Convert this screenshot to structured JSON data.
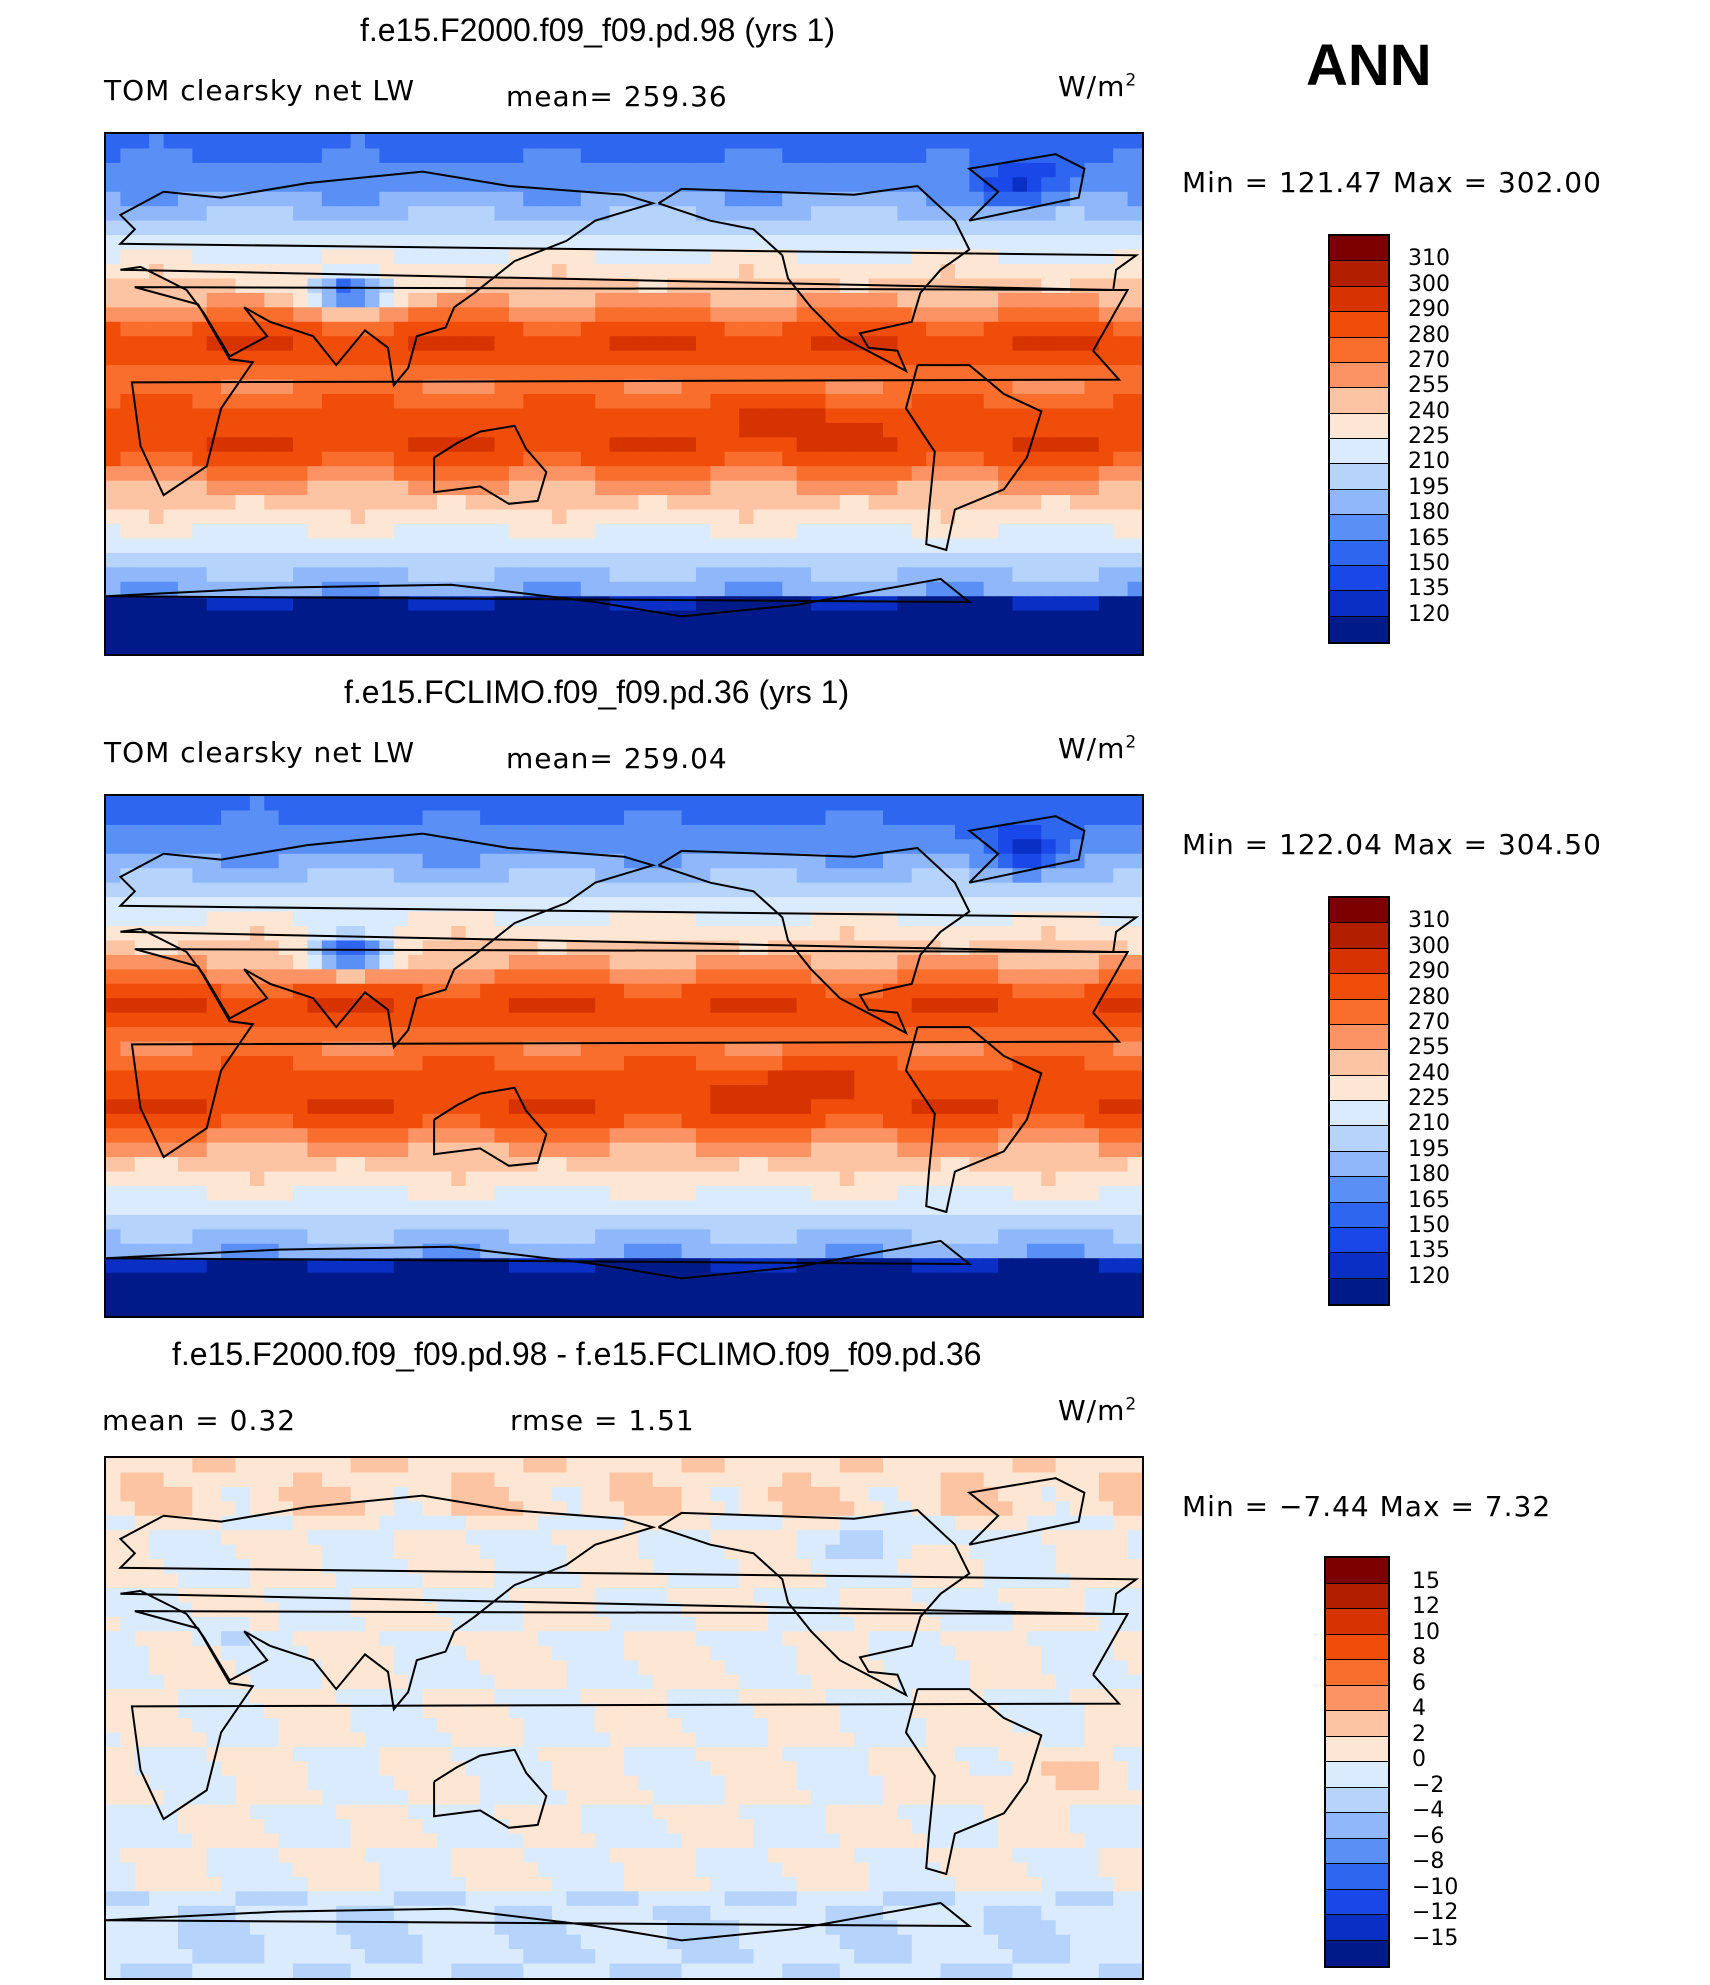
{
  "season": "ANN",
  "panels": [
    {
      "title": "f.e15.F2000.f09_f09.pd.98 (yrs 1)",
      "left_label": "TOM clearsky net LW",
      "mid_label": "mean=  259.36",
      "units": "W/m",
      "units_sup": "2",
      "minmax": "Min  =  121.47  Max  =  302.00"
    },
    {
      "title": "f.e15.FCLIMO.f09_f09.pd.36 (yrs 1)",
      "left_label": "TOM clearsky net LW",
      "mid_label": "mean=  259.04",
      "units": "W/m",
      "units_sup": "2",
      "minmax": "Min  =  122.04  Max  =  304.50"
    },
    {
      "title": "f.e15.F2000.f09_f09.pd.98 - f.e15.FCLIMO.f09_f09.pd.36",
      "left_label": "mean  =      0.32",
      "mid_label": "rmse  =      1.51",
      "units": "W/m",
      "units_sup": "2",
      "minmax": "Min  =     −7.44  Max  =       7.32"
    }
  ],
  "chart_data": [
    {
      "type": "heatmap",
      "title": "f.e15.F2000.f09_f09.pd.98 (yrs 1)",
      "variable": "TOM clearsky net LW",
      "mean": 259.36,
      "min": 121.47,
      "max": 302.0,
      "units": "W/m2",
      "colorbar_levels": [
        310,
        300,
        290,
        280,
        270,
        255,
        240,
        225,
        210,
        195,
        180,
        165,
        150,
        135,
        120
      ],
      "colors": [
        "#7d0000",
        "#b21f00",
        "#d63300",
        "#f04c0a",
        "#fa6e2d",
        "#fc9365",
        "#fcc4a2",
        "#fde7d4",
        "#d9ebfc",
        "#b6d3fb",
        "#8fb7fa",
        "#5a8ff5",
        "#2f66f0",
        "#1a48e8",
        "#0a2fc4",
        "#001a8a"
      ]
    },
    {
      "type": "heatmap",
      "title": "f.e15.FCLIMO.f09_f09.pd.36 (yrs 1)",
      "variable": "TOM clearsky net LW",
      "mean": 259.04,
      "min": 122.04,
      "max": 304.5,
      "units": "W/m2",
      "colorbar_levels": [
        310,
        300,
        290,
        280,
        270,
        255,
        240,
        225,
        210,
        195,
        180,
        165,
        150,
        135,
        120
      ],
      "colors": [
        "#7d0000",
        "#b21f00",
        "#d63300",
        "#f04c0a",
        "#fa6e2d",
        "#fc9365",
        "#fcc4a2",
        "#fde7d4",
        "#d9ebfc",
        "#b6d3fb",
        "#8fb7fa",
        "#5a8ff5",
        "#2f66f0",
        "#1a48e8",
        "#0a2fc4",
        "#001a8a"
      ]
    },
    {
      "type": "heatmap",
      "title": "f.e15.F2000.f09_f09.pd.98 - f.e15.FCLIMO.f09_f09.pd.36",
      "mean": 0.32,
      "rmse": 1.51,
      "min": -7.44,
      "max": 7.32,
      "units": "W/m2",
      "colorbar_levels": [
        "15",
        "12",
        "10",
        "8",
        "6",
        "4",
        "2",
        "0",
        "−2",
        "−4",
        "−6",
        "−8",
        "−10",
        "−12",
        "−15"
      ],
      "colors": [
        "#7d0000",
        "#b21f00",
        "#d63300",
        "#f04c0a",
        "#fa6e2d",
        "#fc9365",
        "#fcc4a2",
        "#fde7d4",
        "#d9ebfc",
        "#b6d3fb",
        "#8fb7fa",
        "#5a8ff5",
        "#2f66f0",
        "#1a48e8",
        "#0a2fc4",
        "#001a8a"
      ]
    }
  ]
}
